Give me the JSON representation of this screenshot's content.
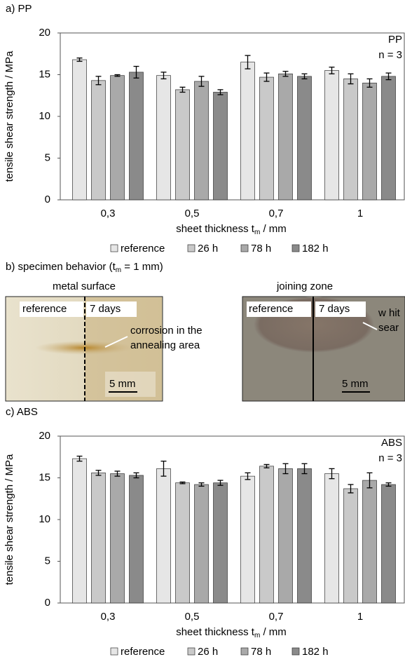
{
  "chart_data": [
    {
      "type": "bar",
      "panel_label": "a) PP",
      "ylabel": "tensile shear strength / MPa",
      "xlabel": [
        "sheet thickness t",
        "m",
        " / mm"
      ],
      "annotations": [
        "PP",
        "n = 3"
      ],
      "categories": [
        "0,3",
        "0,5",
        "0,7",
        "1"
      ],
      "ylim": [
        0,
        20
      ],
      "yticks": [
        0,
        5,
        10,
        15,
        20
      ],
      "series": [
        {
          "name": "reference",
          "color": "#e6e6e6",
          "values": [
            16.8,
            14.9,
            16.5,
            15.5
          ],
          "errors": [
            0.2,
            0.4,
            0.8,
            0.4
          ]
        },
        {
          "name": "26 h",
          "color": "#c9c9c9",
          "values": [
            14.3,
            13.2,
            14.7,
            14.5
          ],
          "errors": [
            0.5,
            0.3,
            0.5,
            0.6
          ]
        },
        {
          "name": "78 h",
          "color": "#a9a9a9",
          "values": [
            14.9,
            14.2,
            15.1,
            14.0
          ],
          "errors": [
            0.1,
            0.6,
            0.3,
            0.5
          ]
        },
        {
          "name": "182 h",
          "color": "#8a8a8a",
          "values": [
            15.3,
            12.9,
            14.8,
            14.8
          ],
          "errors": [
            0.7,
            0.3,
            0.3,
            0.4
          ]
        }
      ]
    },
    {
      "type": "bar",
      "panel_label": "c) ABS",
      "ylabel": "tensile shear strength / MPa",
      "xlabel": [
        "sheet thickness t",
        "m",
        " / mm"
      ],
      "annotations": [
        "ABS",
        "n = 3"
      ],
      "categories": [
        "0,3",
        "0,5",
        "0,7",
        "1"
      ],
      "ylim": [
        0,
        20
      ],
      "yticks": [
        0,
        5,
        10,
        15,
        20
      ],
      "series": [
        {
          "name": "reference",
          "color": "#e6e6e6",
          "values": [
            17.3,
            16.1,
            15.2,
            15.5
          ],
          "errors": [
            0.3,
            0.9,
            0.4,
            0.6
          ]
        },
        {
          "name": "26 h",
          "color": "#c9c9c9",
          "values": [
            15.6,
            14.4,
            16.4,
            13.7
          ],
          "errors": [
            0.3,
            0.1,
            0.2,
            0.5
          ]
        },
        {
          "name": "78 h",
          "color": "#a9a9a9",
          "values": [
            15.5,
            14.2,
            16.1,
            14.7
          ],
          "errors": [
            0.3,
            0.2,
            0.6,
            0.9
          ]
        },
        {
          "name": "182 h",
          "color": "#8a8a8a",
          "values": [
            15.3,
            14.4,
            16.1,
            14.2
          ],
          "errors": [
            0.3,
            0.3,
            0.6,
            0.2
          ]
        }
      ]
    }
  ],
  "panel_b": {
    "title": [
      "b) specimen behavior (t",
      "m",
      " = 1 mm)"
    ],
    "photos": [
      {
        "caption": "metal surface",
        "left": "reference",
        "right": "7 days",
        "note": [
          "corrosion in the",
          "annealing area"
        ],
        "scale": "5 mm"
      },
      {
        "caption": "joining zone",
        "left": "reference",
        "right": "7 days",
        "note": [
          "w hit",
          "sear"
        ],
        "scale": "5 mm"
      }
    ]
  }
}
